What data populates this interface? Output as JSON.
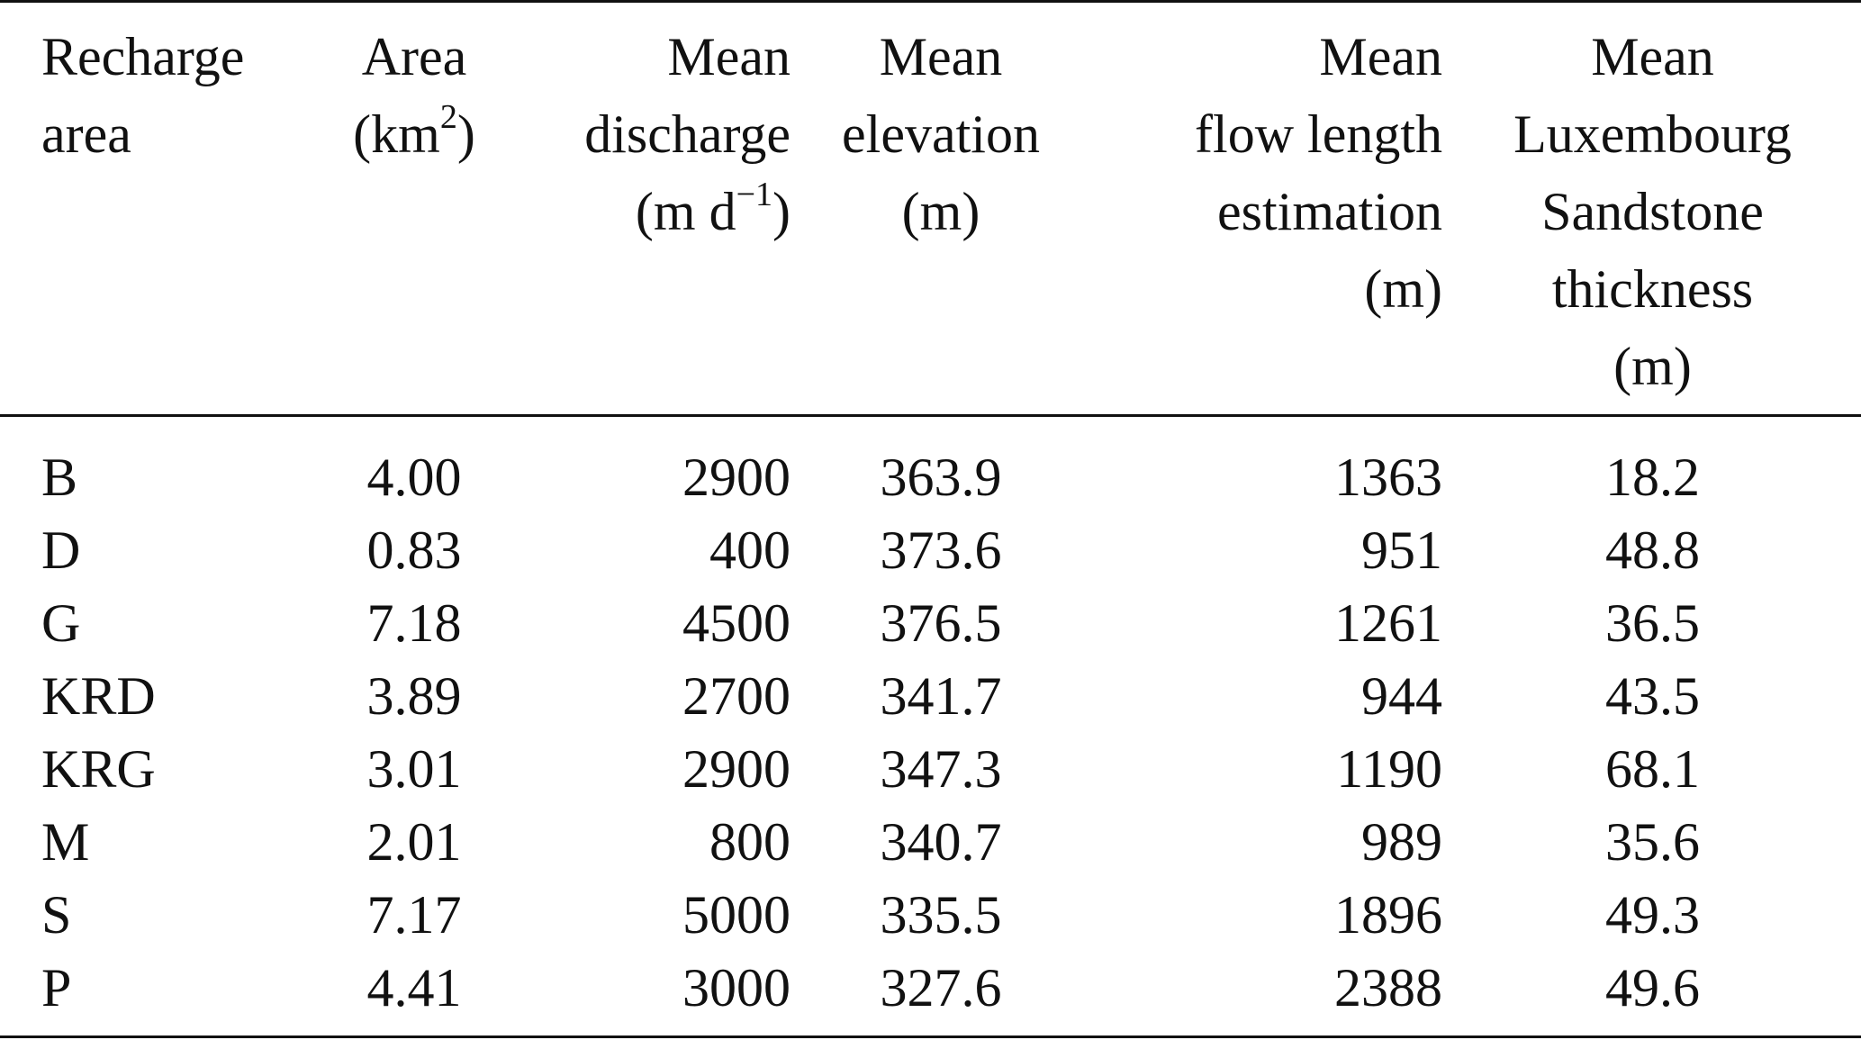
{
  "table": {
    "headers": [
      {
        "lines": [
          "Recharge",
          "area"
        ]
      },
      {
        "lines": [
          "Area",
          "(km"
        ],
        "sup": "2",
        "after_sup": ")"
      },
      {
        "lines": [
          "Mean",
          "discharge",
          "(m d"
        ],
        "sup": "−1",
        "after_sup": ")"
      },
      {
        "lines": [
          "Mean",
          "elevation",
          "(m)"
        ]
      },
      {
        "lines": [
          "Mean",
          "flow length",
          "estimation",
          "(m)"
        ]
      },
      {
        "lines": [
          "Mean",
          "Luxembourg",
          "Sandstone",
          "thickness",
          "(m)"
        ]
      }
    ],
    "rows": [
      [
        "B",
        "4.00",
        "2900",
        "363.9",
        "1363",
        "18.2"
      ],
      [
        "D",
        "0.83",
        "400",
        "373.6",
        "951",
        "48.8"
      ],
      [
        "G",
        "7.18",
        "4500",
        "376.5",
        "1261",
        "36.5"
      ],
      [
        "KRD",
        "3.89",
        "2700",
        "341.7",
        "944",
        "43.5"
      ],
      [
        "KRG",
        "3.01",
        "2900",
        "347.3",
        "1190",
        "68.1"
      ],
      [
        "M",
        "2.01",
        "800",
        "340.7",
        "989",
        "35.6"
      ],
      [
        "S",
        "7.17",
        "5000",
        "335.5",
        "1896",
        "49.3"
      ],
      [
        "P",
        "4.41",
        "3000",
        "327.6",
        "2388",
        "49.6"
      ]
    ]
  }
}
